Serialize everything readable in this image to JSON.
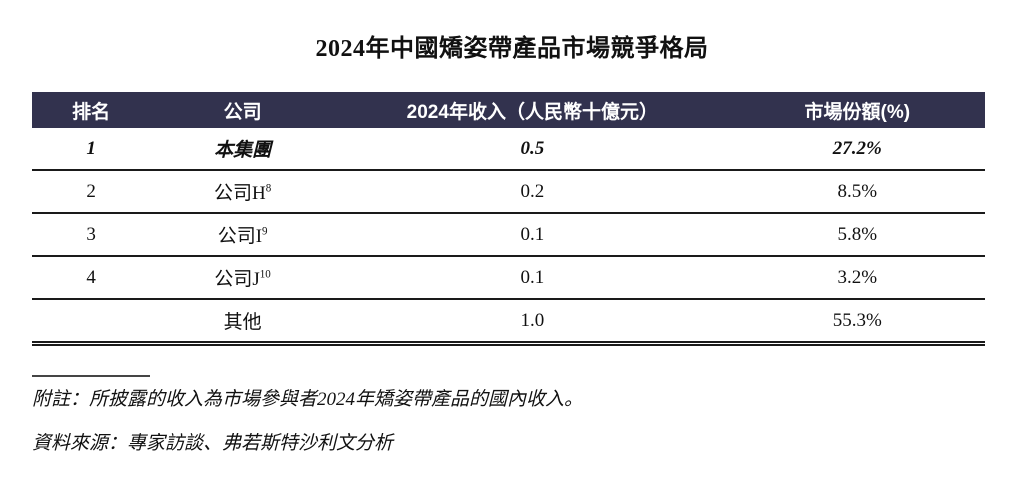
{
  "title": "2024年中國矯姿帶產品市場競爭格局",
  "table": {
    "columns": [
      "排名",
      "公司",
      "2024年收入（人民幣十億元）",
      "市場份額(%)"
    ],
    "rows": [
      {
        "rank": "1",
        "company": "本集團",
        "company_sup": "",
        "revenue": "0.5",
        "share": "27.2%",
        "emphasis": true
      },
      {
        "rank": "2",
        "company": "公司H",
        "company_sup": "8",
        "revenue": "0.2",
        "share": "8.5%",
        "emphasis": false
      },
      {
        "rank": "3",
        "company": "公司I",
        "company_sup": "9",
        "revenue": "0.1",
        "share": "5.8%",
        "emphasis": false
      },
      {
        "rank": "4",
        "company": "公司J",
        "company_sup": "10",
        "revenue": "0.1",
        "share": "3.2%",
        "emphasis": false
      },
      {
        "rank": "",
        "company": "其他",
        "company_sup": "",
        "revenue": "1.0",
        "share": "55.3%",
        "emphasis": false
      }
    ]
  },
  "notes": {
    "footnote": "附註：所披露的收入為市場參與者2024年矯姿帶產品的國內收入。",
    "source": "資料來源：專家訪談、弗若斯特沙利文分析"
  },
  "colors": {
    "header_bg": "#32324E",
    "header_text": "#FFFFFF",
    "row_border": "#1A1A1A",
    "text": "#111111"
  }
}
